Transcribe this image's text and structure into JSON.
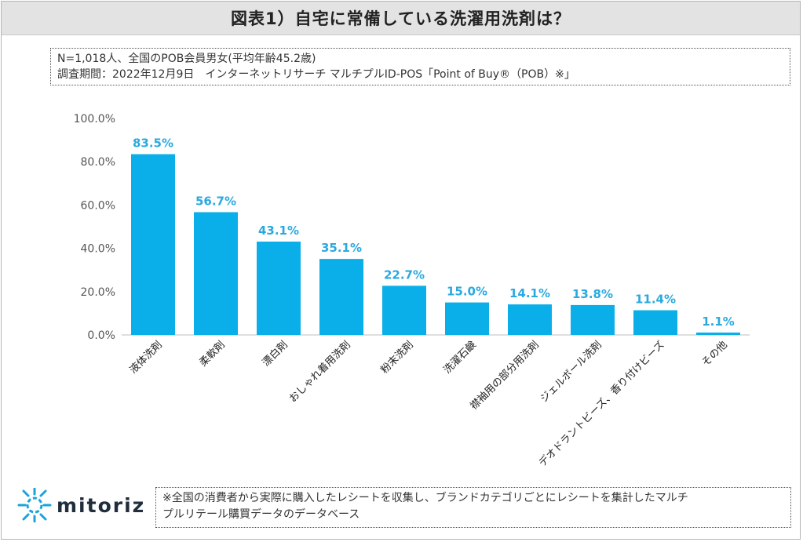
{
  "header": {
    "title": "図表1）自宅に常備している洗濯用洗剤は？"
  },
  "info": {
    "line1": "N=1,018人、全国のPOB会員男女(平均年齢45.2歳)",
    "line2": "調査期間：2022年12月9日　インターネットリサーチ マルチプルID-POS「Point of Buy®（POB）※」"
  },
  "chart_data": {
    "type": "bar",
    "categories": [
      "液体洗剤",
      "柔軟剤",
      "漂白剤",
      "おしゃれ着用洗剤",
      "粉末洗剤",
      "洗濯石鹸",
      "襟袖用の部分用洗剤",
      "ジェルボール洗剤",
      "デオドラントビーズ、香り付けビーズ",
      "その他"
    ],
    "values": [
      83.5,
      56.7,
      43.1,
      35.1,
      22.7,
      15.0,
      14.1,
      13.8,
      11.4,
      1.1
    ],
    "data_labels": [
      "83.5%",
      "56.7%",
      "43.1%",
      "35.1%",
      "22.7%",
      "15.0%",
      "14.1%",
      "13.8%",
      "11.4%",
      "1.1%"
    ],
    "yticks": [
      "0.0%",
      "20.0%",
      "40.0%",
      "60.0%",
      "80.0%",
      "100.0%"
    ],
    "ylim": [
      0,
      100
    ],
    "grid": false,
    "bar_color": "#0aaee8",
    "label_color": "#2aa9e0"
  },
  "footer": {
    "logo": "mitoriz",
    "note_line1": "※全国の消費者から実際に購入したレシートを収集し、ブランドカテゴリごとにレシートを集計したマルチ",
    "note_line2": "プルリテール購買データのデータベース"
  }
}
